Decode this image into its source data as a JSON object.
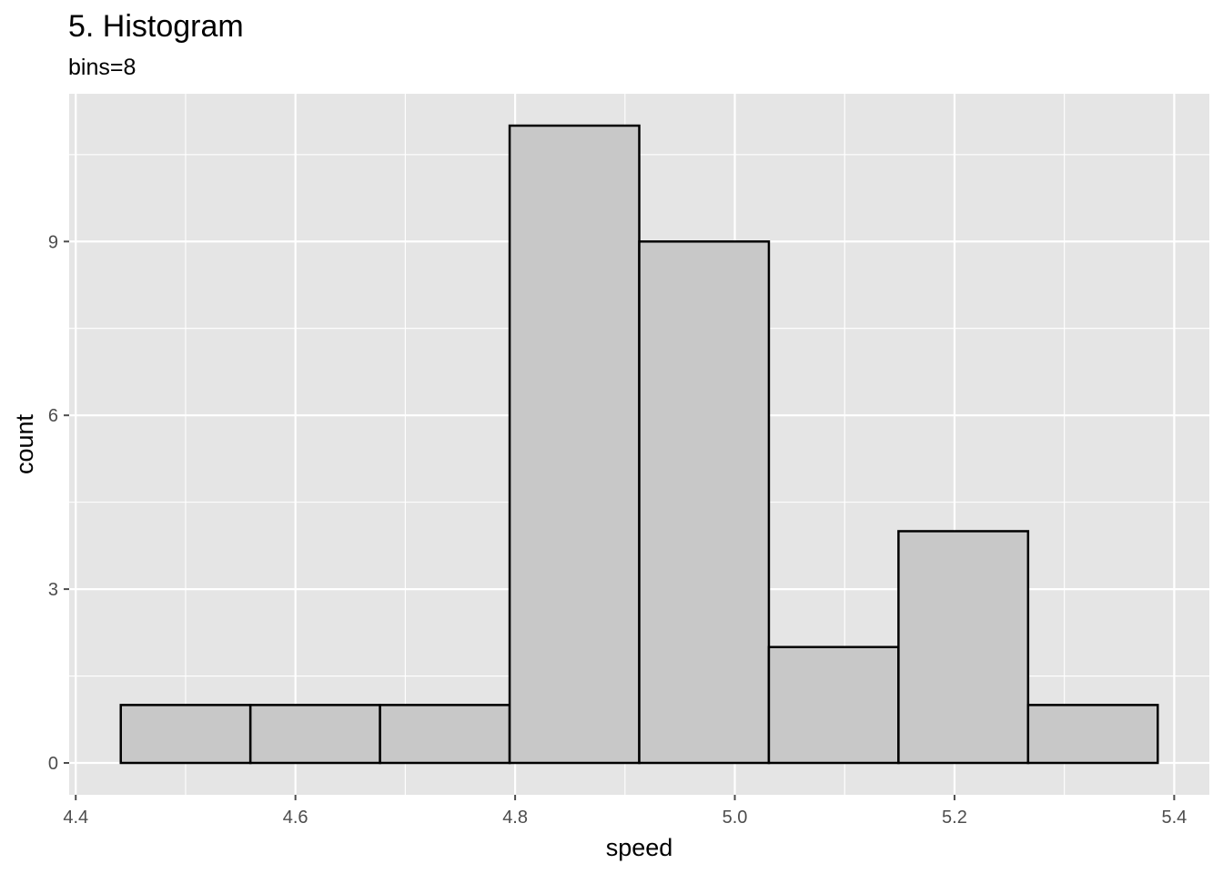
{
  "chart_data": {
    "type": "bar",
    "title": "5. Histogram",
    "subtitle": "bins=8",
    "xlabel": "speed",
    "ylabel": "count",
    "bins": [
      {
        "xmin": 4.441,
        "xmax": 4.559,
        "count": 1
      },
      {
        "xmin": 4.559,
        "xmax": 4.677,
        "count": 1
      },
      {
        "xmin": 4.677,
        "xmax": 4.795,
        "count": 1
      },
      {
        "xmin": 4.795,
        "xmax": 4.913,
        "count": 11
      },
      {
        "xmin": 4.913,
        "xmax": 5.031,
        "count": 9
      },
      {
        "xmin": 5.031,
        "xmax": 5.149,
        "count": 2
      },
      {
        "xmin": 5.149,
        "xmax": 5.267,
        "count": 4
      },
      {
        "xmin": 5.267,
        "xmax": 5.385,
        "count": 1
      }
    ],
    "xlim": [
      4.394,
      5.432
    ],
    "ylim": [
      -0.55,
      11.55
    ],
    "x_ticks": [
      4.4,
      4.6,
      4.8,
      5.0,
      5.2,
      5.4
    ],
    "x_tick_labels": [
      "4.4",
      "4.6",
      "4.8",
      "5.0",
      "5.2",
      "5.4"
    ],
    "y_ticks": [
      0,
      3,
      6,
      9
    ],
    "y_tick_labels": [
      "0",
      "3",
      "6",
      "9"
    ],
    "grid": true,
    "colors": {
      "panel_background": "#e5e5e5",
      "grid": "#ffffff",
      "bar_fill": "#c8c8c8",
      "bar_outline": "#000000",
      "tick": "#4d4d4d"
    }
  }
}
